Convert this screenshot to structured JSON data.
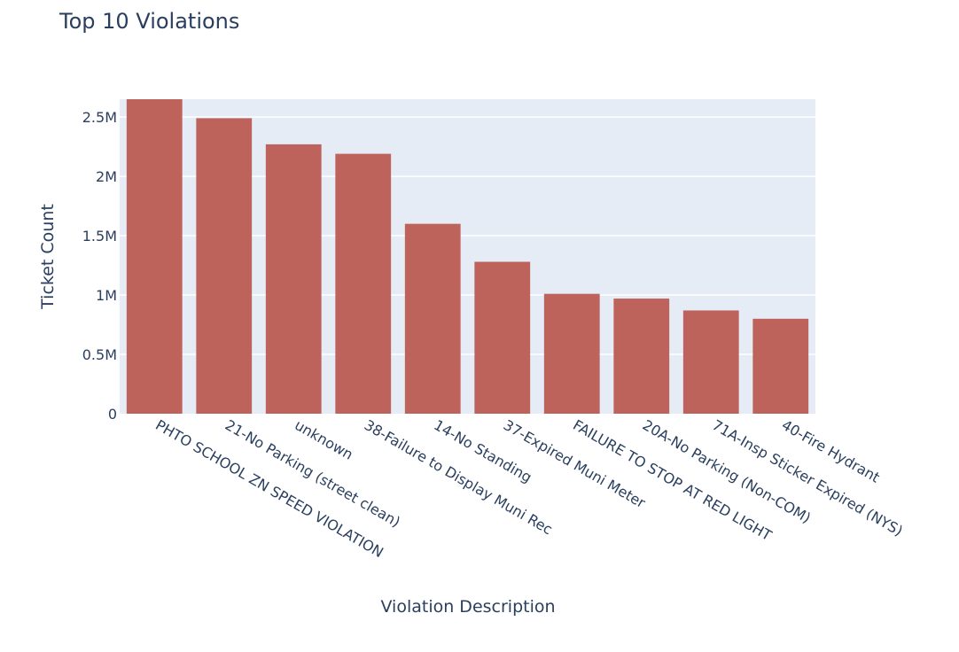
{
  "chart_data": {
    "type": "bar",
    "title": "Top 10 Violations",
    "xlabel": "Violation Description",
    "ylabel": "Ticket Count",
    "categories": [
      "PHTO SCHOOL ZN SPEED VIOLATION",
      "21-No Parking (street clean)",
      "unknown",
      "38-Failure to Display Muni Rec",
      "14-No Standing",
      "37-Expired Muni Meter",
      "FAILURE TO STOP AT RED LIGHT",
      "20A-No Parking (Non-COM)",
      "71A-Insp Sticker Expired (NYS)",
      "40-Fire Hydrant"
    ],
    "values": [
      2650000,
      2490000,
      2270000,
      2190000,
      1600000,
      1280000,
      1010000,
      970000,
      870000,
      800000
    ],
    "ylim": [
      0,
      2650000
    ],
    "yticks": [
      0,
      500000,
      1000000,
      1500000,
      2000000,
      2500000
    ],
    "ytick_labels": [
      "0",
      "0.5M",
      "1M",
      "1.5M",
      "2M",
      "2.5M"
    ],
    "grid": true,
    "colors": {
      "bar": "#bd635b",
      "plot_bg": "#e5ecf6",
      "grid": "#ffffff",
      "text": "#2a3f5f"
    }
  }
}
